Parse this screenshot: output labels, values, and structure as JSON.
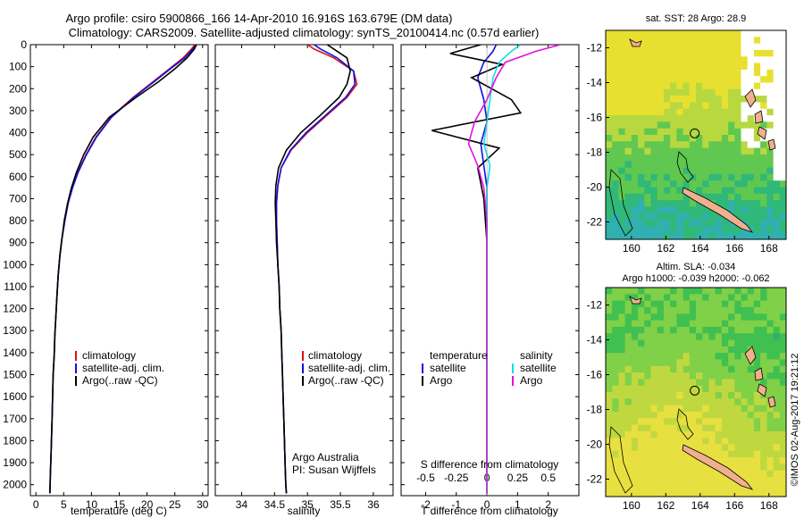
{
  "title": {
    "line1": "Argo profile: csiro 5900866_166 14-Apr-2010 16.916S 163.679E (DM data)",
    "line2": "Climatology: CARS2009. Satellite-adjusted climatology: synTS_20100414.nc (0.57d earlier)"
  },
  "colors": {
    "clim": "#e01010",
    "sat": "#1010e0",
    "argo": "#000000",
    "sal_sat": "#10e0e0",
    "sal_argo": "#e010e0",
    "land": "#f0b090"
  },
  "chart_data": [
    {
      "type": "line",
      "name": "temperature-profile",
      "xlabel": "temperature (deg C)",
      "ylabel": "",
      "xlim": [
        -1,
        31
      ],
      "ylim": [
        0,
        2050
      ],
      "xticks": [
        "0",
        "5",
        "10",
        "15",
        "20",
        "25",
        "30"
      ],
      "xtick_values": [
        0,
        5,
        10,
        15,
        20,
        25,
        30
      ],
      "yticks": [
        "0",
        "100",
        "200",
        "300",
        "400",
        "500",
        "600",
        "700",
        "800",
        "900",
        "1000",
        "1100",
        "1200",
        "1300",
        "1400",
        "1500",
        "1600",
        "1700",
        "1800",
        "1900",
        "2000"
      ],
      "ytick_values": [
        0,
        100,
        200,
        300,
        400,
        500,
        600,
        700,
        800,
        900,
        1000,
        1100,
        1200,
        1300,
        1400,
        1500,
        1600,
        1700,
        1800,
        1900,
        2000
      ],
      "legend": [
        "climatology",
        "satellite-adj. clim.",
        "Argo(..raw -QC)"
      ],
      "series": [
        {
          "name": "climatology",
          "color": "#e01010",
          "x": [
            28.6,
            28.0,
            26.5,
            24.0,
            21.0,
            17.5,
            13.5,
            10.8,
            9.0,
            7.5,
            6.5,
            5.8,
            5.2,
            4.7,
            4.3,
            4.0,
            3.8,
            3.6,
            3.4,
            3.3,
            3.1,
            3.0,
            2.9,
            2.8,
            2.7,
            2.6,
            2.55,
            2.5
          ],
          "y": [
            0,
            20,
            60,
            110,
            170,
            240,
            330,
            420,
            500,
            580,
            650,
            720,
            800,
            880,
            960,
            1050,
            1140,
            1230,
            1320,
            1410,
            1500,
            1600,
            1700,
            1800,
            1880,
            1950,
            2000,
            2040
          ]
        },
        {
          "name": "satellite",
          "color": "#1010e0",
          "x": [
            28.9,
            28.2,
            26.8,
            24.2,
            21.2,
            17.6,
            13.6,
            10.9,
            9.1,
            7.6,
            6.6,
            5.8,
            5.2,
            4.7,
            4.3,
            4.0,
            3.8,
            3.6,
            3.4,
            3.3,
            3.1,
            3.0,
            2.9,
            2.8,
            2.7,
            2.6,
            2.55,
            2.5
          ],
          "y": [
            0,
            20,
            60,
            110,
            170,
            240,
            330,
            420,
            500,
            580,
            650,
            720,
            800,
            880,
            960,
            1050,
            1140,
            1230,
            1320,
            1410,
            1500,
            1600,
            1700,
            1800,
            1880,
            1950,
            2000,
            2040
          ]
        },
        {
          "name": "argo",
          "color": "#000000",
          "x": [
            28.9,
            28.5,
            27.2,
            25.0,
            22.0,
            18.0,
            13.2,
            10.3,
            8.6,
            7.3,
            6.4,
            5.7,
            5.1,
            4.7,
            4.3,
            4.0,
            3.8,
            3.6,
            3.4,
            3.3,
            3.1,
            3.0,
            2.9,
            2.8,
            2.7,
            2.6,
            2.55,
            2.5
          ],
          "y": [
            0,
            20,
            60,
            110,
            170,
            240,
            330,
            420,
            500,
            580,
            650,
            720,
            800,
            880,
            960,
            1050,
            1140,
            1230,
            1320,
            1410,
            1500,
            1600,
            1700,
            1800,
            1880,
            1950,
            2000,
            2040
          ]
        }
      ]
    },
    {
      "type": "line",
      "name": "salinity-profile",
      "xlabel": "salinity",
      "xlim": [
        33.6,
        36.3
      ],
      "ylim": [
        0,
        2050
      ],
      "xticks": [
        "34",
        "34.5",
        "35",
        "35.5",
        "36"
      ],
      "xtick_values": [
        34,
        34.5,
        35,
        35.5,
        36
      ],
      "legend": [
        "climatology",
        "satellite-adj. clim.",
        "Argo(..raw -QC)"
      ],
      "annotation": [
        "Argo Australia",
        "PI: Susan Wijffels"
      ],
      "series": [
        {
          "name": "climatology",
          "color": "#e01010",
          "x": [
            35.0,
            35.1,
            35.4,
            35.7,
            35.75,
            35.6,
            35.3,
            35.0,
            34.75,
            34.6,
            34.55,
            34.53,
            34.53,
            34.54,
            34.55,
            34.57,
            34.58,
            34.6,
            34.61,
            34.62,
            34.63,
            34.64,
            34.65,
            34.66,
            34.67,
            34.68
          ],
          "y": [
            0,
            20,
            60,
            120,
            180,
            240,
            320,
            400,
            480,
            560,
            640,
            720,
            800,
            900,
            1000,
            1100,
            1200,
            1300,
            1400,
            1500,
            1600,
            1700,
            1800,
            1900,
            2000,
            2040
          ]
        },
        {
          "name": "satellite",
          "color": "#1010e0",
          "x": [
            35.1,
            35.2,
            35.45,
            35.7,
            35.72,
            35.58,
            35.28,
            34.98,
            34.74,
            34.6,
            34.55,
            34.53,
            34.53,
            34.54,
            34.55,
            34.57,
            34.58,
            34.6,
            34.61,
            34.62,
            34.63,
            34.64,
            34.65,
            34.66,
            34.67,
            34.68
          ],
          "y": [
            0,
            20,
            60,
            120,
            180,
            240,
            320,
            400,
            480,
            560,
            640,
            720,
            800,
            900,
            1000,
            1100,
            1200,
            1300,
            1400,
            1500,
            1600,
            1700,
            1800,
            1900,
            2000,
            2040
          ]
        },
        {
          "name": "argo",
          "color": "#000000",
          "x": [
            35.3,
            35.4,
            35.6,
            35.65,
            35.6,
            35.48,
            35.2,
            34.9,
            34.68,
            34.56,
            34.52,
            34.51,
            34.52,
            34.53,
            34.55,
            34.57,
            34.58,
            34.6,
            34.61,
            34.62,
            34.63,
            34.64,
            34.65,
            34.66,
            34.67,
            34.68
          ],
          "y": [
            0,
            20,
            60,
            120,
            180,
            240,
            320,
            400,
            480,
            560,
            640,
            720,
            800,
            900,
            1000,
            1100,
            1200,
            1300,
            1400,
            1500,
            1600,
            1700,
            1800,
            1900,
            2000,
            2040
          ]
        }
      ]
    },
    {
      "type": "line",
      "name": "difference-profile",
      "xlabel": "T difference from climatology",
      "xlabel_top": "S difference from climatology",
      "xlim": [
        -2.8,
        3.0
      ],
      "ylim": [
        0,
        2050
      ],
      "xticks": [
        "-2",
        "-1",
        "0",
        "1",
        "2"
      ],
      "xtick_values": [
        -2,
        -1,
        0,
        1,
        2
      ],
      "sticks": [
        "-0.5",
        "-0.25",
        "0",
        "0.25",
        "0.5"
      ],
      "stick_values": [
        -2,
        -1,
        0,
        1,
        2
      ],
      "legend_t": [
        "temperature",
        "satellite",
        "Argo"
      ],
      "legend_s": [
        "salinity",
        "satellite",
        "Argo"
      ],
      "series": [
        {
          "name": "T satellite",
          "color": "#1010e0",
          "x": [
            0.3,
            0.2,
            -0.1,
            -0.3,
            -0.1,
            0.0,
            -0.2,
            -0.1,
            0.0,
            0.0,
            0.0,
            0.0,
            0.0,
            0.0,
            0.0,
            0.0,
            0.0
          ],
          "y": [
            0,
            30,
            80,
            150,
            250,
            350,
            450,
            550,
            650,
            800,
            1000,
            1200,
            1400,
            1600,
            1800,
            1950,
            2040
          ]
        },
        {
          "name": "T argo",
          "color": "#000000",
          "x": [
            -0.2,
            -1.2,
            0.5,
            -0.5,
            0.8,
            1.1,
            -1.8,
            0.4,
            -0.3,
            -0.1,
            0.0,
            0.0,
            0.0,
            0.0,
            0.0,
            0.0,
            0.0
          ],
          "y": [
            0,
            40,
            90,
            150,
            250,
            310,
            390,
            470,
            560,
            700,
            900,
            1100,
            1300,
            1500,
            1700,
            1900,
            2040
          ]
        },
        {
          "name": "S satellite",
          "color": "#10e0e0",
          "x": [
            1.1,
            0.8,
            0.4,
            0.2,
            0.1,
            0.0,
            -0.1,
            0.1,
            0.0,
            0.0,
            0.0,
            0.0,
            0.0,
            0.0,
            0.0,
            0.0,
            0.0
          ],
          "y": [
            0,
            30,
            80,
            150,
            250,
            350,
            450,
            550,
            650,
            800,
            1000,
            1200,
            1400,
            1600,
            1800,
            1950,
            2040
          ]
        },
        {
          "name": "S argo",
          "color": "#e010e0",
          "x": [
            2.4,
            1.6,
            0.6,
            0.3,
            0.0,
            -0.4,
            -0.6,
            -0.3,
            -0.1,
            0.0,
            0.0,
            0.0,
            0.0,
            0.0,
            0.0,
            0.0,
            0.0
          ],
          "y": [
            0,
            30,
            80,
            150,
            250,
            350,
            450,
            550,
            650,
            800,
            1000,
            1200,
            1400,
            1600,
            1800,
            1950,
            2040
          ]
        }
      ]
    },
    {
      "type": "heatmap",
      "name": "sst-map",
      "title": "sat. SST: 28 Argo: 28.9",
      "xlim": [
        158.5,
        169.0
      ],
      "ylim": [
        -23,
        -11
      ],
      "xticks": [
        "160",
        "162",
        "164",
        "166",
        "168"
      ],
      "xtick_values": [
        160,
        162,
        164,
        166,
        168
      ],
      "yticks": [
        "-12",
        "-14",
        "-16",
        "-18",
        "-20",
        "-22"
      ],
      "ytick_values": [
        -12,
        -14,
        -16,
        -18,
        -20,
        -22
      ],
      "marker": {
        "lon": 163.679,
        "lat": -16.916
      }
    },
    {
      "type": "heatmap",
      "name": "sla-map",
      "title_line1": "Altim. SLA: -0.034",
      "title_line2": "Argo h1000: -0.039 h2000: -0.062",
      "xlim": [
        158.5,
        169.0
      ],
      "ylim": [
        -23,
        -11
      ],
      "xticks": [
        "160",
        "162",
        "164",
        "166",
        "168"
      ],
      "xtick_values": [
        160,
        162,
        164,
        166,
        168
      ],
      "yticks": [
        "-12",
        "-14",
        "-16",
        "-18",
        "-20",
        "-22"
      ],
      "ytick_values": [
        -12,
        -14,
        -16,
        -18,
        -20,
        -22
      ],
      "marker": {
        "lon": 163.679,
        "lat": -16.916
      }
    }
  ],
  "watermark": "©IMOS 02-Aug-2017 19:21:12"
}
